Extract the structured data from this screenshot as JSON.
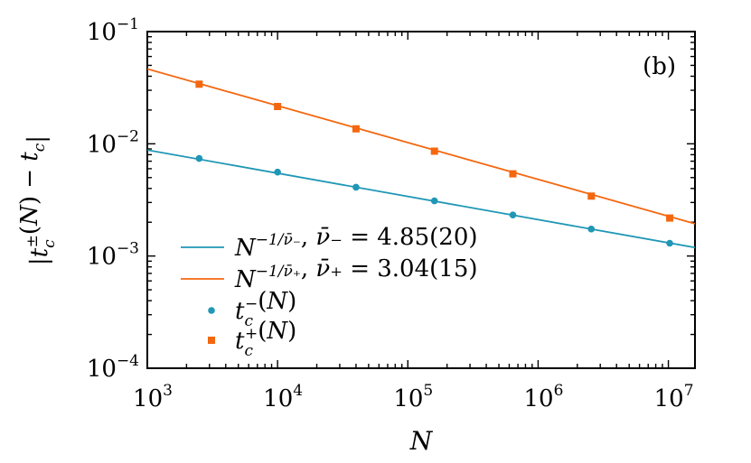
{
  "chart_data": {
    "type": "line",
    "panel_label": "(b)",
    "xlabel": "N",
    "ylabel": "|t_c^±(N) − t_c|",
    "x_scale": "log",
    "y_scale": "log",
    "xlim": [
      1000,
      16000000
    ],
    "ylim": [
      0.0001,
      0.1
    ],
    "x_ticks": [
      {
        "value": 1000,
        "base": "10",
        "exp": "3"
      },
      {
        "value": 10000,
        "base": "10",
        "exp": "4"
      },
      {
        "value": 100000,
        "base": "10",
        "exp": "5"
      },
      {
        "value": 1000000,
        "base": "10",
        "exp": "6"
      },
      {
        "value": 10000000,
        "base": "10",
        "exp": "7"
      }
    ],
    "y_ticks": [
      {
        "value": 0.0001,
        "base": "10",
        "exp": "−4"
      },
      {
        "value": 0.001,
        "base": "10",
        "exp": "−3"
      },
      {
        "value": 0.01,
        "base": "10",
        "exp": "−2"
      },
      {
        "value": 0.1,
        "base": "10",
        "exp": "−1"
      }
    ],
    "grid": false,
    "legend_position": "bottom-left",
    "series": [
      {
        "name": "N^{−1/ν̄−}, ν̄− = 4.85(20)",
        "kind": "line",
        "color": "#1f97b5",
        "x": [
          1000,
          16000000
        ],
        "y": [
          0.0088,
          0.00119
        ]
      },
      {
        "name": "N^{−1/ν̄+}, ν̄+ = 3.04(15)",
        "kind": "line",
        "color": "#f4670f",
        "x": [
          1000,
          16000000
        ],
        "y": [
          0.0465,
          0.00194
        ]
      },
      {
        "name": "t_c^−(N)",
        "kind": "scatter",
        "marker": "circle",
        "color": "#1f97b5",
        "x": [
          2500,
          10000,
          40000,
          160000,
          640000,
          2560000,
          10240000
        ],
        "y": [
          0.0074,
          0.0056,
          0.0041,
          0.0031,
          0.00232,
          0.00174,
          0.0013
        ]
      },
      {
        "name": "t_c^+(N)",
        "kind": "scatter",
        "marker": "square",
        "color": "#f4670f",
        "x": [
          2500,
          10000,
          40000,
          160000,
          640000,
          2560000,
          10240000
        ],
        "y": [
          0.034,
          0.0215,
          0.0136,
          0.0086,
          0.0054,
          0.00342,
          0.00218
        ]
      }
    ],
    "legend": [
      {
        "kind": "line",
        "color": "#1f97b5",
        "label": "N^{−1/ν̄−}, ν̄− = 4.85(20)"
      },
      {
        "kind": "line",
        "color": "#f4670f",
        "label": "N^{−1/ν̄+}, ν̄+ = 3.04(15)"
      },
      {
        "kind": "circle",
        "color": "#1f97b5",
        "label": "t_c^−(N)"
      },
      {
        "kind": "square",
        "color": "#f4670f",
        "label": "t_c^+(N)"
      }
    ]
  }
}
